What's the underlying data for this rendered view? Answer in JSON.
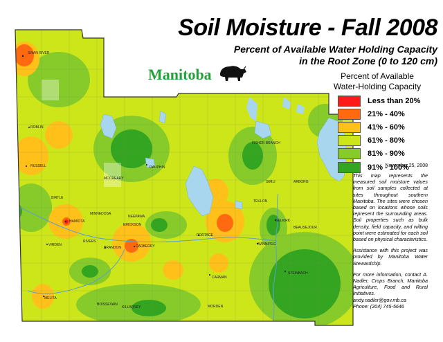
{
  "title": "Soil Moisture - Fall 2008",
  "subtitle_line1": "Percent of Available Water Holding Capacity",
  "subtitle_line2": "in the Root Zone (0 to 120 cm)",
  "brand": "Manitoba",
  "brand_logo_icon": "bison-icon",
  "legend": {
    "title_line1": "Percent of Available",
    "title_line2": "Water-Holding Capacity",
    "items": [
      {
        "label": "Less than 20%",
        "color": "#ff1a1a"
      },
      {
        "label": "21% - 40%",
        "color": "#ff6a10"
      },
      {
        "label": "41% - 60%",
        "color": "#ffc01a"
      },
      {
        "label": "61% - 80%",
        "color": "#cde61a"
      },
      {
        "label": "81% - 90%",
        "color": "#86cb2a"
      },
      {
        "label": "91% - 100%",
        "color": "#34a520"
      }
    ]
  },
  "date": "November 25, 2008",
  "notes": {
    "description": "This map represents the measured soil moisture values from soil samples collected at sites throughout southern Manitoba. The sites were chosen based on locations whose soils represent the surrounding areas. Soil properties such as bulk density, field capacity, and wilting point were estimated for each soil based on physical characteristics.",
    "assistance": "Assistance with this project was provided by Manitoba Water Stewardship.",
    "contact_intro": "For more information, contact A. Nadler, Crops Branch, Manitoba Agriculture, Food and Rural Initiatives.",
    "email": "andy.nadler@gov.mb.ca",
    "phone": "Phone: (204) 745-5646"
  },
  "places": {
    "swan_river": "SWAN RIVER",
    "roblin": "ROBLIN",
    "russell": "RUSSELL",
    "dauphin": "DAUPHIN",
    "mcsarlin": "MCCREARY",
    "erickson": "ERICKSON",
    "minnedosa": "MINNEDOSA",
    "neepawa": "NEEPAWA",
    "virden": "VIRDEN",
    "brandon": "BRANDON",
    "carberry": "CARBERRY",
    "portage": "PORTAGE",
    "winnipeg": "WINNIPEG",
    "selkirk": "SELKIRK",
    "beausejour": "BEAUSEJOUR",
    "arborg": "ARBORG",
    "gimli": "GIMLI",
    "fisher_branch": "FISHER BRANCH",
    "carman": "CARMAN",
    "morden": "MORDEN",
    "steinbach": "STEINBACH",
    "melita": "MELITA",
    "boissevain": "BOISSEVAIN",
    "killarney": "KILLARNEY",
    "teulon": "TEULON",
    "hamiota": "HAMIOTA",
    "rivers": "RIVERS",
    "birtle": "BIRTLE"
  }
}
